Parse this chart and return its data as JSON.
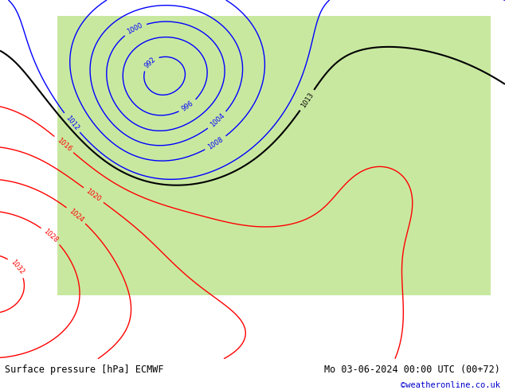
{
  "title_left": "Surface pressure [hPa] ECMWF",
  "title_right": "Mo 03-06-2024 00:00 UTC (00+72)",
  "credit": "©weatheronline.co.uk",
  "figsize": [
    6.34,
    4.9
  ],
  "dpi": 100,
  "bg_color": "#e8e8e8",
  "land_color": "#c8e8a0",
  "sea_color": "#dcdcdc",
  "bottom_bar_color": "#f0f0f0",
  "bottom_text_color": "#000000",
  "credit_color": "#0000cc"
}
